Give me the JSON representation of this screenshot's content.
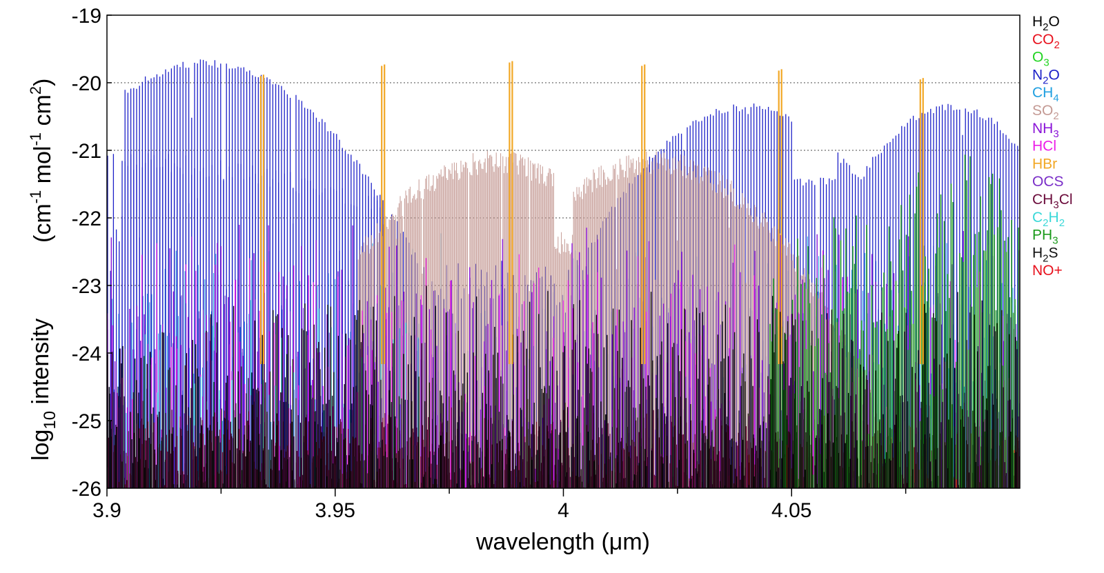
{
  "chart_data": {
    "type": "line",
    "title": "",
    "xlabel": "wavelength (μm)",
    "ylabel_parts": {
      "log": "log",
      "log_sub": "10",
      "intensity": " intensity",
      "units_open": "(cm",
      "units_exp1": "-1",
      "units_mol": " mol",
      "units_exp2": "-1",
      "units_cm": " cm",
      "units_exp3": "2",
      "units_close": ")"
    },
    "xlim": [
      3.9,
      4.1
    ],
    "ylim": [
      -26,
      -19
    ],
    "x_ticks": [
      3.9,
      3.95,
      4.0,
      4.05
    ],
    "x_tick_labels": [
      "3.9",
      "3.95",
      "4",
      "4.05"
    ],
    "x_minor_ticks": [
      3.925,
      3.975,
      4.025,
      4.075
    ],
    "y_ticks": [
      -26,
      -25,
      -24,
      -23,
      -22,
      -21,
      -20,
      -19
    ],
    "y_tick_labels": [
      "-26",
      "-25",
      "-24",
      "-23",
      "-22",
      "-21",
      "-20",
      "-19"
    ],
    "gridlines_y": [
      -20,
      -21,
      -22,
      -23
    ],
    "legend_position": "right",
    "series": [
      {
        "name": "H2O",
        "label": "H",
        "sub": "2",
        "label2": "O",
        "sub2": "",
        "color": "#000000"
      },
      {
        "name": "CO2",
        "label": "CO",
        "sub": "2",
        "label2": "",
        "sub2": "",
        "color": "#e8101c"
      },
      {
        "name": "O3",
        "label": "O",
        "sub": "3",
        "label2": "",
        "sub2": "",
        "color": "#22d422"
      },
      {
        "name": "N2O",
        "label": "N",
        "sub": "2",
        "label2": "O",
        "sub2": "",
        "color": "#1c20c8"
      },
      {
        "name": "CH4",
        "label": "CH",
        "sub": "4",
        "label2": "",
        "sub2": "",
        "color": "#1f9fe0"
      },
      {
        "name": "SO2",
        "label": "SO",
        "sub": "2",
        "label2": "",
        "sub2": "",
        "color": "#c49a94"
      },
      {
        "name": "NH3",
        "label": "NH",
        "sub": "3",
        "label2": "",
        "sub2": "",
        "color": "#8a14d8"
      },
      {
        "name": "HCl",
        "label": "HCl",
        "sub": "",
        "label2": "",
        "sub2": "",
        "color": "#ec1ce8"
      },
      {
        "name": "HBr",
        "label": "HBr",
        "sub": "",
        "label2": "",
        "sub2": "",
        "color": "#f2a724"
      },
      {
        "name": "OCS",
        "label": "OCS",
        "sub": "",
        "label2": "",
        "sub2": "",
        "color": "#7a2ec8"
      },
      {
        "name": "CH3Cl",
        "label": "CH",
        "sub": "3",
        "label2": "Cl",
        "sub2": "",
        "color": "#6a0a3a"
      },
      {
        "name": "C2H2",
        "label": "C",
        "sub": "2",
        "label2": "H",
        "sub2": "2",
        "color": "#3ad8d8"
      },
      {
        "name": "PH3",
        "label": "PH",
        "sub": "3",
        "label2": "",
        "sub2": "",
        "color": "#1a9a1a"
      },
      {
        "name": "H2S",
        "label": "H",
        "sub": "2",
        "label2": "S",
        "sub2": "",
        "color": "#101010"
      },
      {
        "name": "NO+",
        "label": "NO+",
        "sub": "",
        "label2": "",
        "sub2": "",
        "color": "#e8101c"
      }
    ],
    "hbr_lines_um": [
      3.934,
      3.9605,
      3.9885,
      4.0175,
      4.0475,
      4.0785
    ],
    "hbr_peak_log": [
      -19.9,
      -19.75,
      -19.7,
      -19.75,
      -19.82,
      -19.95
    ]
  }
}
